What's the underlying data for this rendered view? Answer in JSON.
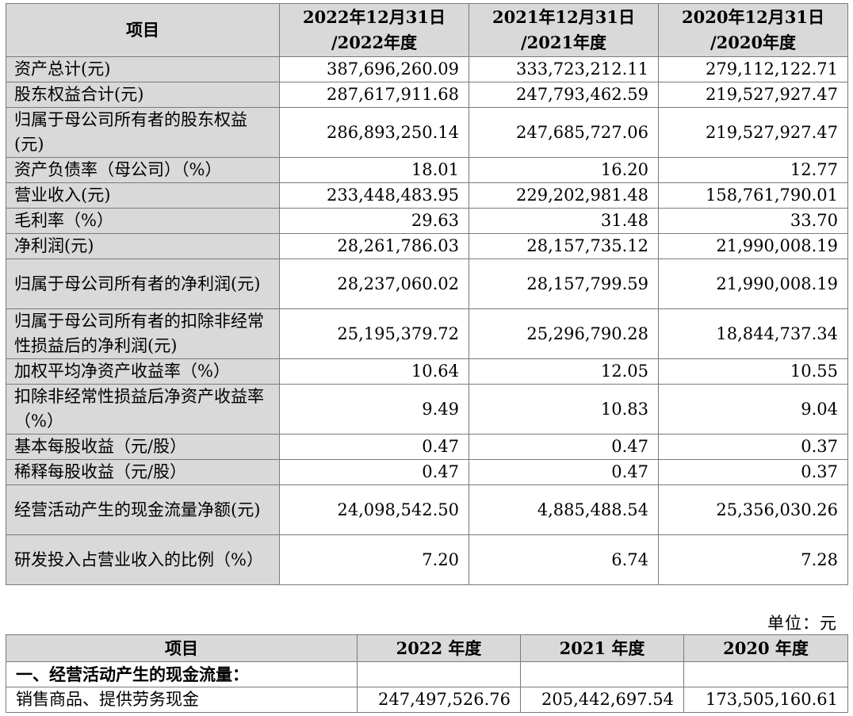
{
  "table1": {
    "headers": [
      "项目",
      "2022年12月31日\n/2022年度",
      "2021年12月31日\n/2021年度",
      "2020年12月31日\n/2020年度"
    ],
    "rows": [
      {
        "label": "资产总计(元)",
        "values": [
          "387,696,260.09",
          "333,723,212.11",
          "279,112,122.71"
        ],
        "lines": 1
      },
      {
        "label": "股东权益合计(元)",
        "values": [
          "287,617,911.68",
          "247,793,462.59",
          "219,527,927.47"
        ],
        "lines": 1
      },
      {
        "label": "归属于母公司所有者的股东权益(元)",
        "values": [
          "286,893,250.14",
          "247,685,727.06",
          "219,527,927.47"
        ],
        "lines": 2
      },
      {
        "label": "资产负债率（母公司）（%）",
        "values": [
          "18.01",
          "16.20",
          "12.77"
        ],
        "lines": 1
      },
      {
        "label": "营业收入(元)",
        "values": [
          "233,448,483.95",
          "229,202,981.48",
          "158,761,790.01"
        ],
        "lines": 1
      },
      {
        "label": "毛利率（%）",
        "values": [
          "29.63",
          "31.48",
          "33.70"
        ],
        "lines": 1
      },
      {
        "label": "净利润(元)",
        "values": [
          "28,261,786.03",
          "28,157,735.12",
          "21,990,008.19"
        ],
        "lines": 1
      },
      {
        "label": "归属于母公司所有者的净利润(元)",
        "values": [
          "28,237,060.02",
          "28,157,799.59",
          "21,990,008.19"
        ],
        "lines": 2
      },
      {
        "label": "归属于母公司所有者的扣除非经常性损益后的净利润(元)",
        "values": [
          "25,195,379.72",
          "25,296,790.28",
          "18,844,737.34"
        ],
        "lines": 2
      },
      {
        "label": "加权平均净资产收益率（%）",
        "values": [
          "10.64",
          "12.05",
          "10.55"
        ],
        "lines": 1
      },
      {
        "label": "扣除非经常性损益后净资产收益率（%）",
        "values": [
          "9.49",
          "10.83",
          "9.04"
        ],
        "lines": 2
      },
      {
        "label": "基本每股收益（元/股）",
        "values": [
          "0.47",
          "0.47",
          "0.37"
        ],
        "lines": 1
      },
      {
        "label": "稀释每股收益（元/股）",
        "values": [
          "0.47",
          "0.47",
          "0.37"
        ],
        "lines": 1
      },
      {
        "label": "经营活动产生的现金流量净额(元)",
        "values": [
          "24,098,542.50",
          "4,885,488.54",
          "25,356,030.26"
        ],
        "lines": 2
      },
      {
        "label": "研发投入占营业收入的比例（%）",
        "values": [
          "7.20",
          "6.74",
          "7.28"
        ],
        "lines": 2
      }
    ]
  },
  "unit_label": "单位：元",
  "table2": {
    "headers": [
      "项目",
      "2022 年度",
      "2021 年度",
      "2020 年度"
    ],
    "rows": [
      {
        "label": "一、经营活动产生的现金流量：",
        "values": [
          "",
          "",
          ""
        ],
        "section": true
      },
      {
        "label": "销售商品、提供劳务现金",
        "values": [
          "247,497,526.76",
          "205,442,697.54",
          "173,505,160.61"
        ],
        "section": false
      }
    ]
  }
}
